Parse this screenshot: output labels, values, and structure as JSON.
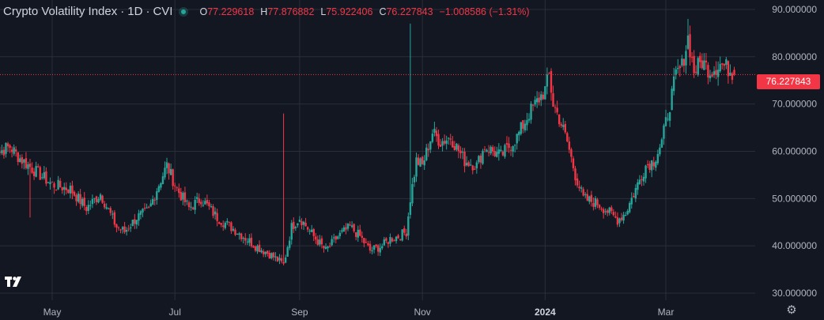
{
  "header": {
    "symbol_name": "Crypto Volatility Index",
    "interval": "1D",
    "ticker": "CVI",
    "open_label": "O",
    "open_value": "77.229618",
    "high_label": "H",
    "high_value": "77.876882",
    "low_label": "L",
    "low_value": "75.922406",
    "close_label": "C",
    "close_value": "76.227843",
    "change": "−1.008586 (−1.31%)"
  },
  "last_price_tag": "76.227843",
  "colors": {
    "up": "#26a69a",
    "down": "#f23645",
    "background": "#131722",
    "grid": "#2a2e39",
    "text": "#b2b5be"
  },
  "icons": [
    "tradingview-logo-icon",
    "settings-gear-icon",
    "status-dot-icon"
  ],
  "chart_data": {
    "type": "candlestick",
    "y_range": [
      28.5,
      92
    ],
    "y_ticks": [
      "90.000000",
      "80.000000",
      "70.000000",
      "60.000000",
      "50.000000",
      "40.000000",
      "30.000000"
    ],
    "y_tick_values": [
      90,
      80,
      70,
      60,
      50,
      40,
      30
    ],
    "x_ticks": [
      {
        "label": "May",
        "date": "2023-05-01",
        "bold": false
      },
      {
        "label": "Jul",
        "date": "2023-07-01",
        "bold": false
      },
      {
        "label": "Sep",
        "date": "2023-09-01",
        "bold": false
      },
      {
        "label": "Nov",
        "date": "2023-11-01",
        "bold": false
      },
      {
        "label": "2024",
        "date": "2024-01-01",
        "bold": true
      },
      {
        "label": "Mar",
        "date": "2024-03-01",
        "bold": false
      }
    ],
    "last_close": 76.227843,
    "anchors": [
      [
        "2023-04-01",
        63
      ],
      [
        "2023-04-05",
        60
      ],
      [
        "2023-04-10",
        61
      ],
      [
        "2023-04-15",
        58.5
      ],
      [
        "2023-04-22",
        56
      ],
      [
        "2023-05-01",
        53
      ],
      [
        "2023-05-10",
        52
      ],
      [
        "2023-05-18",
        48
      ],
      [
        "2023-05-25",
        51
      ],
      [
        "2023-06-02",
        44
      ],
      [
        "2023-06-06",
        43
      ],
      [
        "2023-06-12",
        46
      ],
      [
        "2023-06-18",
        47.5
      ],
      [
        "2023-06-22",
        52
      ],
      [
        "2023-06-27",
        57
      ],
      [
        "2023-07-02",
        52
      ],
      [
        "2023-07-08",
        48
      ],
      [
        "2023-07-14",
        50
      ],
      [
        "2023-07-22",
        46
      ],
      [
        "2023-08-01",
        43
      ],
      [
        "2023-08-10",
        40
      ],
      [
        "2023-08-18",
        38
      ],
      [
        "2023-08-24",
        36
      ],
      [
        "2023-08-28",
        44
      ],
      [
        "2023-09-01",
        46
      ],
      [
        "2023-09-08",
        42
      ],
      [
        "2023-09-14",
        39
      ],
      [
        "2023-09-20",
        42
      ],
      [
        "2023-09-26",
        44
      ],
      [
        "2023-10-01",
        42
      ],
      [
        "2023-10-06",
        39
      ],
      [
        "2023-10-12",
        40
      ],
      [
        "2023-10-16",
        41.5
      ],
      [
        "2023-10-20",
        42
      ],
      [
        "2023-10-24",
        43
      ],
      [
        "2023-10-26",
        50
      ],
      [
        "2023-10-29",
        58
      ],
      [
        "2023-11-01",
        57
      ],
      [
        "2023-11-06",
        64
      ],
      [
        "2023-11-10",
        62
      ],
      [
        "2023-11-15",
        63
      ],
      [
        "2023-11-22",
        58
      ],
      [
        "2023-11-28",
        57
      ],
      [
        "2023-12-02",
        61
      ],
      [
        "2023-12-10",
        59
      ],
      [
        "2023-12-18",
        63
      ],
      [
        "2023-12-24",
        68
      ],
      [
        "2024-01-01",
        73
      ],
      [
        "2024-01-03",
        76
      ],
      [
        "2024-01-05",
        70
      ],
      [
        "2024-01-08",
        67
      ],
      [
        "2024-01-12",
        62
      ],
      [
        "2024-01-16",
        55
      ],
      [
        "2024-01-20",
        50
      ],
      [
        "2024-01-27",
        49
      ],
      [
        "2024-02-02",
        47
      ],
      [
        "2024-02-06",
        45.5
      ],
      [
        "2024-02-10",
        47
      ],
      [
        "2024-02-16",
        53
      ],
      [
        "2024-02-20",
        57
      ],
      [
        "2024-02-24",
        58
      ],
      [
        "2024-02-28",
        62
      ],
      [
        "2024-03-03",
        70
      ],
      [
        "2024-03-06",
        76
      ],
      [
        "2024-03-09",
        78
      ],
      [
        "2024-03-12",
        84
      ],
      [
        "2024-03-15",
        77
      ],
      [
        "2024-03-19",
        79
      ],
      [
        "2024-03-23",
        77
      ],
      [
        "2024-03-28",
        78.5
      ],
      [
        "2024-04-02",
        77.2
      ],
      [
        "2024-04-04",
        76.23
      ]
    ]
  }
}
